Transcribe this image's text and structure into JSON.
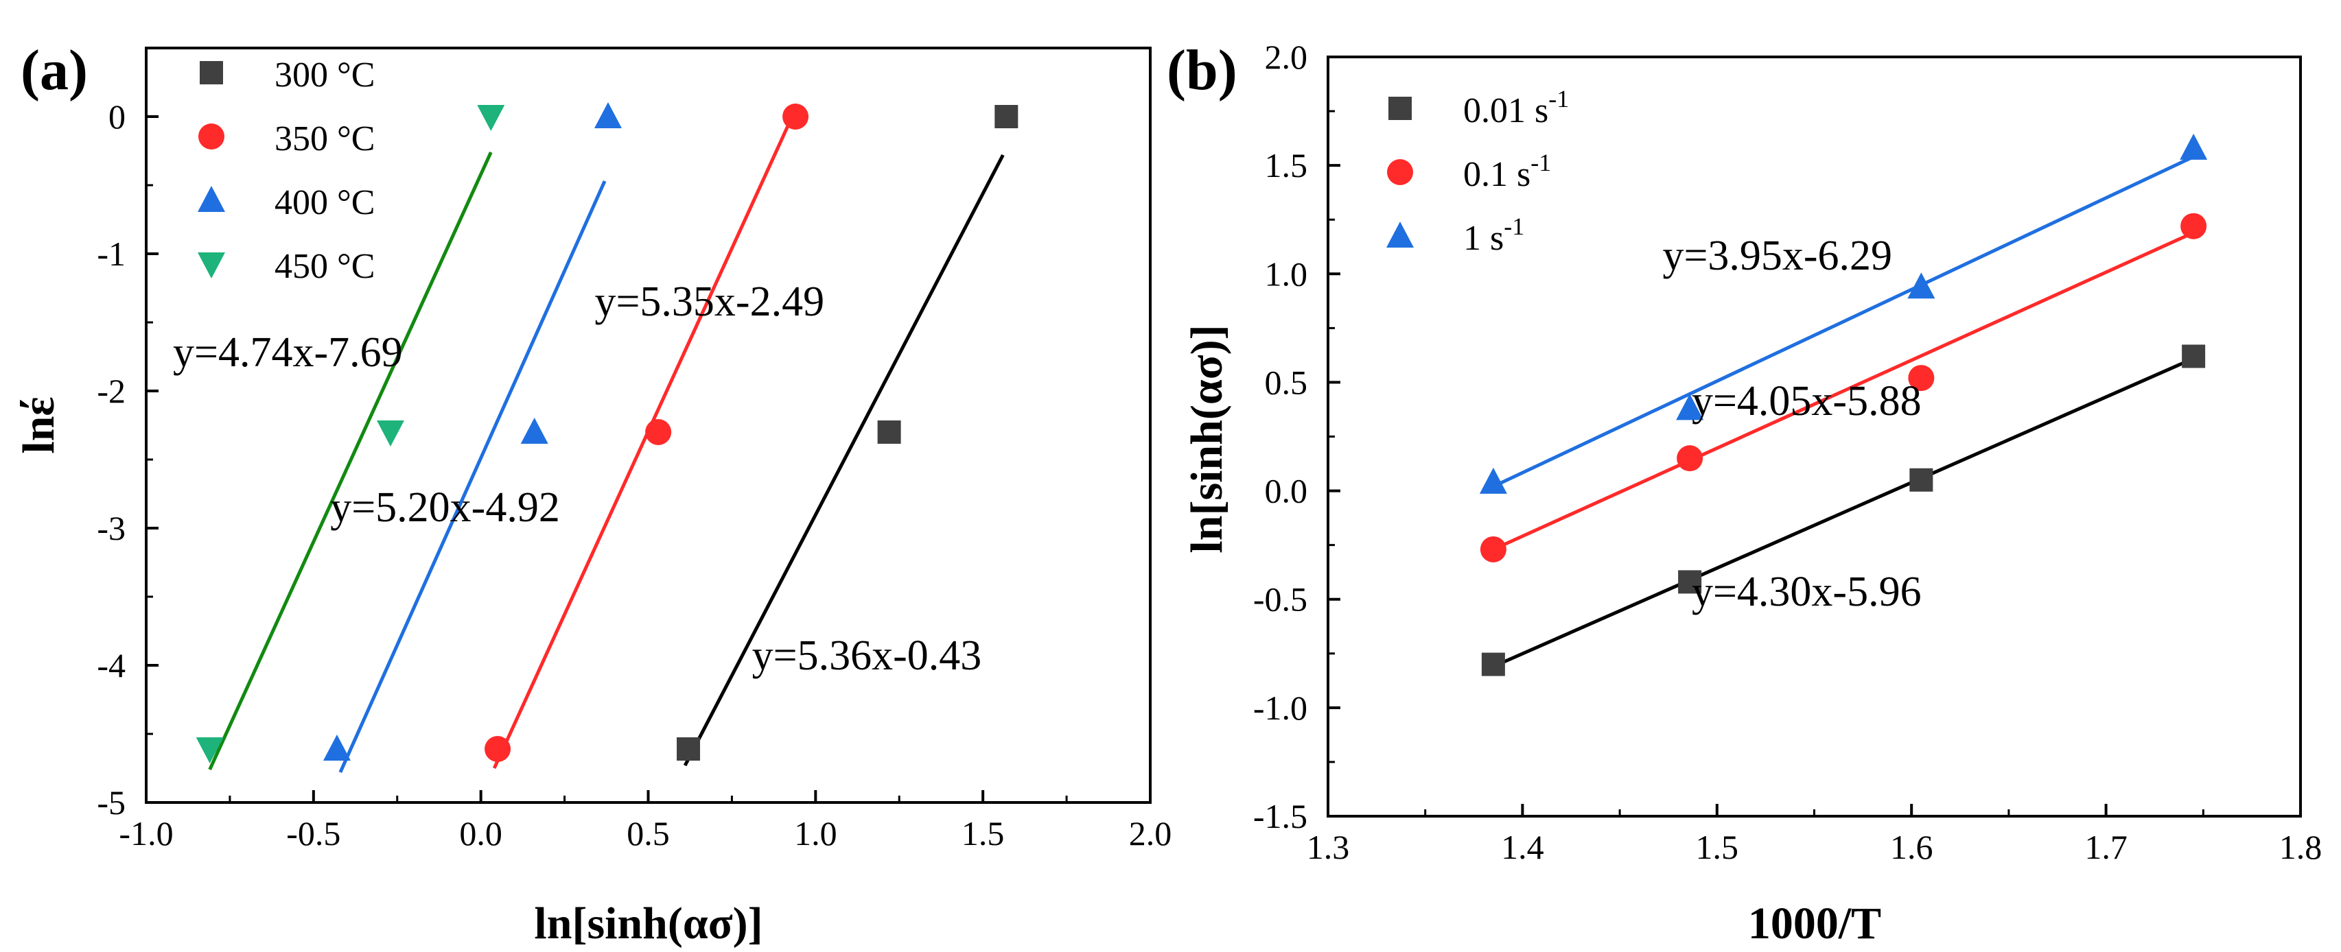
{
  "chart_data": [
    {
      "type": "scatter",
      "panel_label": "(a)",
      "xlabel": "ln[sinh(ασ)]",
      "ylabel": "lnέ",
      "xlim": [
        -1.0,
        2.0
      ],
      "ylim": [
        -5,
        0.5
      ],
      "xticks": [
        -1.0,
        -0.5,
        0.0,
        0.5,
        1.0,
        1.5,
        2.0
      ],
      "xtick_labels": [
        "-1.0",
        "-0.5",
        "0.0",
        "0.5",
        "1.0",
        "1.5",
        "2.0"
      ],
      "yticks": [
        -5,
        -4,
        -3,
        -2,
        -1,
        0
      ],
      "ytick_labels": [
        "-5",
        "-4",
        "-3",
        "-2",
        "-1",
        "0"
      ],
      "legend_position": "top-left",
      "series": [
        {
          "name": "300 °C",
          "marker": "square",
          "color": "#404040",
          "x": [
            0.62,
            1.22,
            1.57
          ],
          "y": [
            -4.61,
            -2.3,
            0.0
          ],
          "fit": {
            "slope": 5.36,
            "x_range": [
              0.61,
              1.56
            ],
            "y_at_start": -4.73,
            "y_at_end": -0.28
          }
        },
        {
          "name": "350 °C",
          "marker": "circle",
          "color": "#ff2a2a",
          "x": [
            0.05,
            0.53,
            0.94
          ],
          "y": [
            -4.61,
            -2.3,
            0.0
          ],
          "fit": {
            "slope": 5.35,
            "x_range": [
              0.04,
              0.93
            ],
            "y_at_start": -4.75,
            "y_at_end": -0.0
          }
        },
        {
          "name": "400 °C",
          "marker": "triangle-up",
          "color": "#1f6fe0",
          "x": [
            -0.43,
            0.16,
            0.38
          ],
          "y": [
            -4.61,
            -2.3,
            0.0
          ],
          "fit": {
            "slope": 5.2,
            "x_range": [
              -0.42,
              0.37
            ],
            "y_at_start": -4.78,
            "y_at_end": -0.47
          }
        },
        {
          "name": "450 °C",
          "marker": "triangle-down",
          "color": "#1db37a",
          "x": [
            -0.81,
            -0.27,
            0.03
          ],
          "y": [
            -4.61,
            -2.3,
            0.0
          ],
          "fit": {
            "slope": 4.74,
            "x_range": [
              -0.81,
              0.03
            ],
            "y_at_start": -4.76,
            "y_at_end": -0.26
          },
          "fit_color": "#118a11"
        }
      ],
      "annotations": [
        {
          "text": "y=4.74x-7.69",
          "x": -0.92,
          "y": -1.82
        },
        {
          "text": "y=5.35x-2.49",
          "x": 0.34,
          "y": -1.45
        },
        {
          "text": "y=5.20x-4.92",
          "x": -0.45,
          "y": -2.95
        },
        {
          "text": "y=5.36x-0.43",
          "x": 0.81,
          "y": -4.03
        }
      ]
    },
    {
      "type": "scatter",
      "panel_label": "(b)",
      "xlabel": "1000/T",
      "ylabel": "ln[sinh(ασ)]",
      "xlim": [
        1.3,
        1.8
      ],
      "ylim": [
        -1.5,
        2.0
      ],
      "xticks": [
        1.3,
        1.4,
        1.5,
        1.6,
        1.7,
        1.8
      ],
      "xtick_labels": [
        "1.3",
        "1.4",
        "1.5",
        "1.6",
        "1.7",
        "1.8"
      ],
      "yticks": [
        -1.5,
        -1.0,
        -0.5,
        0.0,
        0.5,
        1.0,
        1.5,
        2.0
      ],
      "ytick_labels": [
        "-1.5",
        "-1.0",
        "-0.5",
        "0.0",
        "0.5",
        "1.0",
        "1.5",
        "2.0"
      ],
      "legend_position": "top-left",
      "series": [
        {
          "name": "0.01 s",
          "name_sup": "-1",
          "marker": "square",
          "color": "#404040",
          "x": [
            1.385,
            1.486,
            1.605,
            1.745
          ],
          "y": [
            -0.8,
            -0.42,
            0.05,
            0.62
          ],
          "fit": {
            "slope": 4.3,
            "x_range": [
              1.385,
              1.745
            ],
            "y_at_start": -0.81,
            "y_at_end": 0.61
          },
          "fit_color": "#000000"
        },
        {
          "name": "0.1 s",
          "name_sup": "-1",
          "marker": "circle",
          "color": "#ff2a2a",
          "x": [
            1.385,
            1.486,
            1.605,
            1.745
          ],
          "y": [
            -0.27,
            0.15,
            0.52,
            1.22
          ],
          "fit": {
            "slope": 4.05,
            "x_range": [
              1.385,
              1.745
            ],
            "y_at_start": -0.27,
            "y_at_end": 1.19
          },
          "fit_color": "#ff2a2a"
        },
        {
          "name": "1 s",
          "name_sup": "-1",
          "marker": "triangle-up",
          "color": "#1f6fe0",
          "x": [
            1.385,
            1.486,
            1.605,
            1.745
          ],
          "y": [
            0.04,
            0.38,
            0.94,
            1.58
          ],
          "fit": {
            "slope": 3.95,
            "x_range": [
              1.385,
              1.745
            ],
            "y_at_start": 0.02,
            "y_at_end": 1.54
          },
          "fit_color": "#1f6fe0"
        }
      ],
      "annotations": [
        {
          "text": "y=3.95x-6.29",
          "x": 1.472,
          "y": 1.02
        },
        {
          "text": "y=4.05x-5.88",
          "x": 1.487,
          "y": 0.35
        },
        {
          "text": "y=4.30x-5.96",
          "x": 1.487,
          "y": -0.53
        }
      ]
    }
  ]
}
